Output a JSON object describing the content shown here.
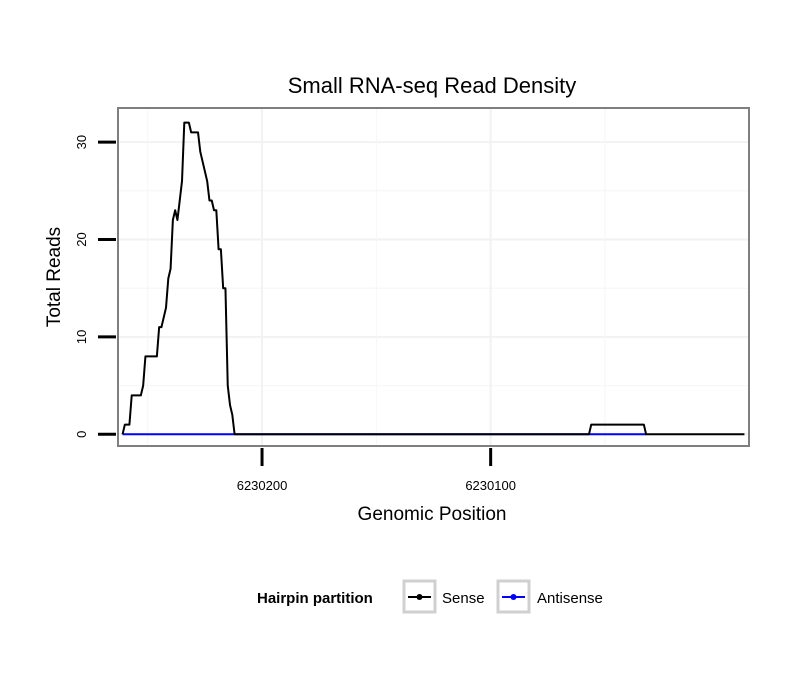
{
  "chart_data": {
    "type": "line",
    "title": "Small RNA-seq Read Density",
    "xlabel": "Genomic Position",
    "ylabel": "Total Reads",
    "x_reversed": true,
    "xlim": [
      6230263,
      6229987
    ],
    "ylim": [
      -1.2,
      33.5
    ],
    "x_ticks": [
      {
        "value": 6230200,
        "label": "6230200"
      },
      {
        "value": 6230100,
        "label": "6230100"
      }
    ],
    "y_ticks": [
      {
        "value": 0,
        "label": "0"
      },
      {
        "value": 10,
        "label": "10"
      },
      {
        "value": 20,
        "label": "20"
      },
      {
        "value": 30,
        "label": "30"
      }
    ],
    "legend": {
      "title": "Hairpin partition",
      "position": "bottom",
      "entries": [
        {
          "name": "Sense",
          "color": "#000000"
        },
        {
          "name": "Antisense",
          "color": "#0000ff"
        }
      ]
    },
    "series": [
      {
        "name": "Sense",
        "color": "#000000",
        "points": [
          [
            6230261,
            0
          ],
          [
            6230260,
            1
          ],
          [
            6230258,
            1
          ],
          [
            6230257,
            4
          ],
          [
            6230253,
            4
          ],
          [
            6230252,
            5
          ],
          [
            6230251,
            8
          ],
          [
            6230246,
            8
          ],
          [
            6230245,
            11
          ],
          [
            6230244,
            11
          ],
          [
            6230243,
            12
          ],
          [
            6230242,
            13
          ],
          [
            6230241,
            16
          ],
          [
            6230240,
            17
          ],
          [
            6230239,
            22
          ],
          [
            6230238,
            23
          ],
          [
            6230237,
            22
          ],
          [
            6230236,
            24
          ],
          [
            6230235,
            26
          ],
          [
            6230234,
            32
          ],
          [
            6230232,
            32
          ],
          [
            6230231,
            31
          ],
          [
            6230228,
            31
          ],
          [
            6230227,
            29
          ],
          [
            6230226,
            28
          ],
          [
            6230225,
            27
          ],
          [
            6230224,
            26
          ],
          [
            6230223,
            24
          ],
          [
            6230222,
            24
          ],
          [
            6230221,
            23
          ],
          [
            6230220,
            23
          ],
          [
            6230219,
            19
          ],
          [
            6230218,
            19
          ],
          [
            6230217,
            15
          ],
          [
            6230216,
            15
          ],
          [
            6230215,
            5
          ],
          [
            6230214,
            3
          ],
          [
            6230213,
            2
          ],
          [
            6230212,
            0
          ],
          [
            6230057,
            0
          ],
          [
            6230056,
            1
          ],
          [
            6230033,
            1
          ],
          [
            6230032,
            0
          ],
          [
            6229989,
            0
          ]
        ]
      },
      {
        "name": "Antisense",
        "color": "#0000ff",
        "points": [
          [
            6230261,
            0
          ],
          [
            6230032,
            0
          ]
        ]
      }
    ]
  }
}
